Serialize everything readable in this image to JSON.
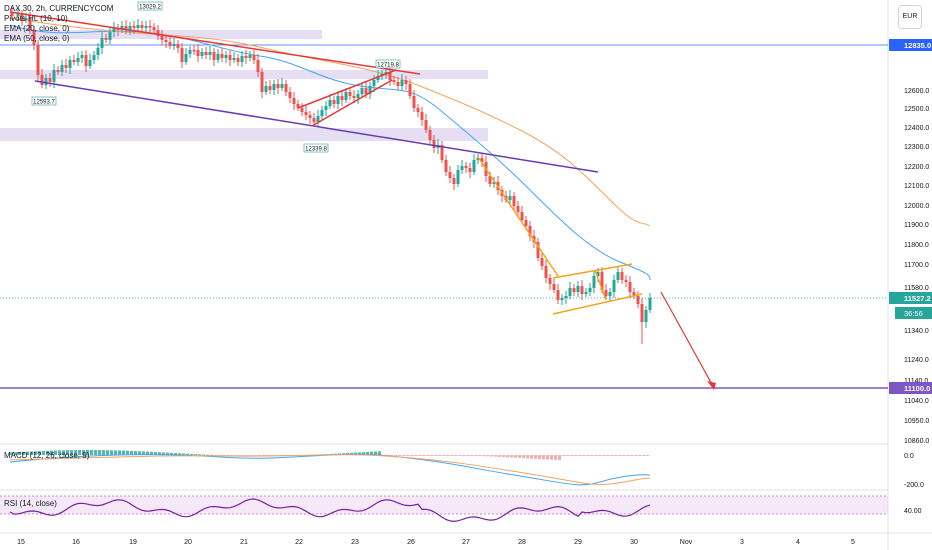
{
  "legend": {
    "symbol": "DAX 30, 2h, CURRENCYCOM",
    "pivots": "Pivots HL (10, 10)",
    "ema20": "EMA (20, close, 0)",
    "ema50": "EMA (50, close, 0)"
  },
  "currency_badge": "EUR",
  "macd_label": "MACD (12, 26, close, 9)",
  "rsi_label": "RSI (14, close)",
  "colors": {
    "up": "#26a69a",
    "down": "#ef5350",
    "ema20": "#42a5f5",
    "ema50": "#f4a460",
    "trend_red": "#e53935",
    "trend_purple": "#673ab7",
    "pattern_orange": "#f4a31c",
    "zone": "#d1c4e9",
    "level_blue": "#2962ff",
    "level_purple": "#7e57c2",
    "rsi_line": "#7b1fa2"
  },
  "chart_data": {
    "type": "candlestick",
    "x_tick_labels": [
      "15",
      "16",
      "19",
      "20",
      "21",
      "22",
      "23",
      "26",
      "27",
      "28",
      "29",
      "30",
      "Nov",
      "3",
      "4",
      "5"
    ],
    "y_tick_labels": [
      "12600.0",
      "12500.0",
      "12400.0",
      "12300.0",
      "12200.0",
      "12100.0",
      "12000.0",
      "11900.0",
      "11800.0",
      "11700.0",
      "11580.0",
      "11340.0",
      "11240.0",
      "11140.0",
      "11040.0",
      "10950.0",
      "10860.0"
    ],
    "price_markers": {
      "resistance_level": "12835.0",
      "current_price": "11527.2",
      "countdown": "36:56",
      "target_level": "11100.0"
    },
    "pivot_labels": [
      "13029.2",
      "12593.7",
      "12719.8",
      "12339.8"
    ],
    "macd": {
      "ticks": [
        "0.0",
        "-200.0"
      ]
    },
    "rsi": {
      "ticks": [
        "40.00"
      ]
    }
  }
}
